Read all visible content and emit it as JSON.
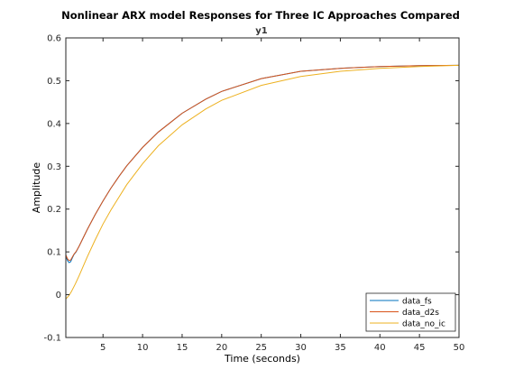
{
  "chart_data": {
    "type": "line",
    "title": "Nonlinear ARX model Responses for Three IC Approaches Compared",
    "subtitle": "y1",
    "xlabel": "Time (seconds)",
    "ylabel": "Amplitude",
    "xlim": [
      0.3,
      50
    ],
    "ylim": [
      -0.1,
      0.6
    ],
    "xticks": [
      "5",
      "10",
      "15",
      "20",
      "25",
      "30",
      "35",
      "40",
      "45",
      "50"
    ],
    "yticks": [
      "-0.1",
      "0",
      "0.1",
      "0.2",
      "0.3",
      "0.4",
      "0.5",
      "0.6"
    ],
    "grid": false,
    "legend_position": "bottom-right",
    "series": [
      {
        "name": "data_fs",
        "color": "#0072bd",
        "x": [
          0.3,
          0.5,
          0.7,
          0.9,
          1.1,
          1.3,
          1.6,
          2,
          3,
          4,
          5,
          6,
          7,
          8,
          10,
          12,
          15,
          18,
          20,
          25,
          30,
          35,
          40,
          45,
          50
        ],
        "y": [
          0.09,
          0.08,
          0.075,
          0.077,
          0.085,
          0.093,
          0.1,
          0.114,
          0.152,
          0.187,
          0.219,
          0.249,
          0.276,
          0.301,
          0.344,
          0.38,
          0.424,
          0.457,
          0.475,
          0.505,
          0.522,
          0.529,
          0.533,
          0.535,
          0.536
        ]
      },
      {
        "name": "data_d2s",
        "color": "#d95319",
        "x": [
          0.3,
          0.5,
          0.7,
          0.9,
          1.1,
          1.3,
          1.6,
          2,
          3,
          4,
          5,
          6,
          7,
          8,
          10,
          12,
          15,
          18,
          20,
          25,
          30,
          35,
          40,
          45,
          50
        ],
        "y": [
          0.093,
          0.084,
          0.08,
          0.081,
          0.087,
          0.094,
          0.101,
          0.114,
          0.152,
          0.187,
          0.219,
          0.249,
          0.276,
          0.301,
          0.344,
          0.38,
          0.424,
          0.457,
          0.475,
          0.505,
          0.522,
          0.529,
          0.533,
          0.535,
          0.536
        ]
      },
      {
        "name": "data_no_ic",
        "color": "#edb120",
        "x": [
          0.3,
          0.5,
          0.7,
          1,
          1.5,
          2,
          3,
          4,
          5,
          6,
          8,
          10,
          12,
          15,
          18,
          20,
          25,
          30,
          35,
          40,
          45,
          50
        ],
        "y": [
          -0.01,
          -0.006,
          -0.002,
          0.007,
          0.025,
          0.045,
          0.088,
          0.128,
          0.165,
          0.198,
          0.257,
          0.306,
          0.348,
          0.397,
          0.434,
          0.454,
          0.489,
          0.51,
          0.522,
          0.529,
          0.533,
          0.536
        ]
      }
    ]
  }
}
